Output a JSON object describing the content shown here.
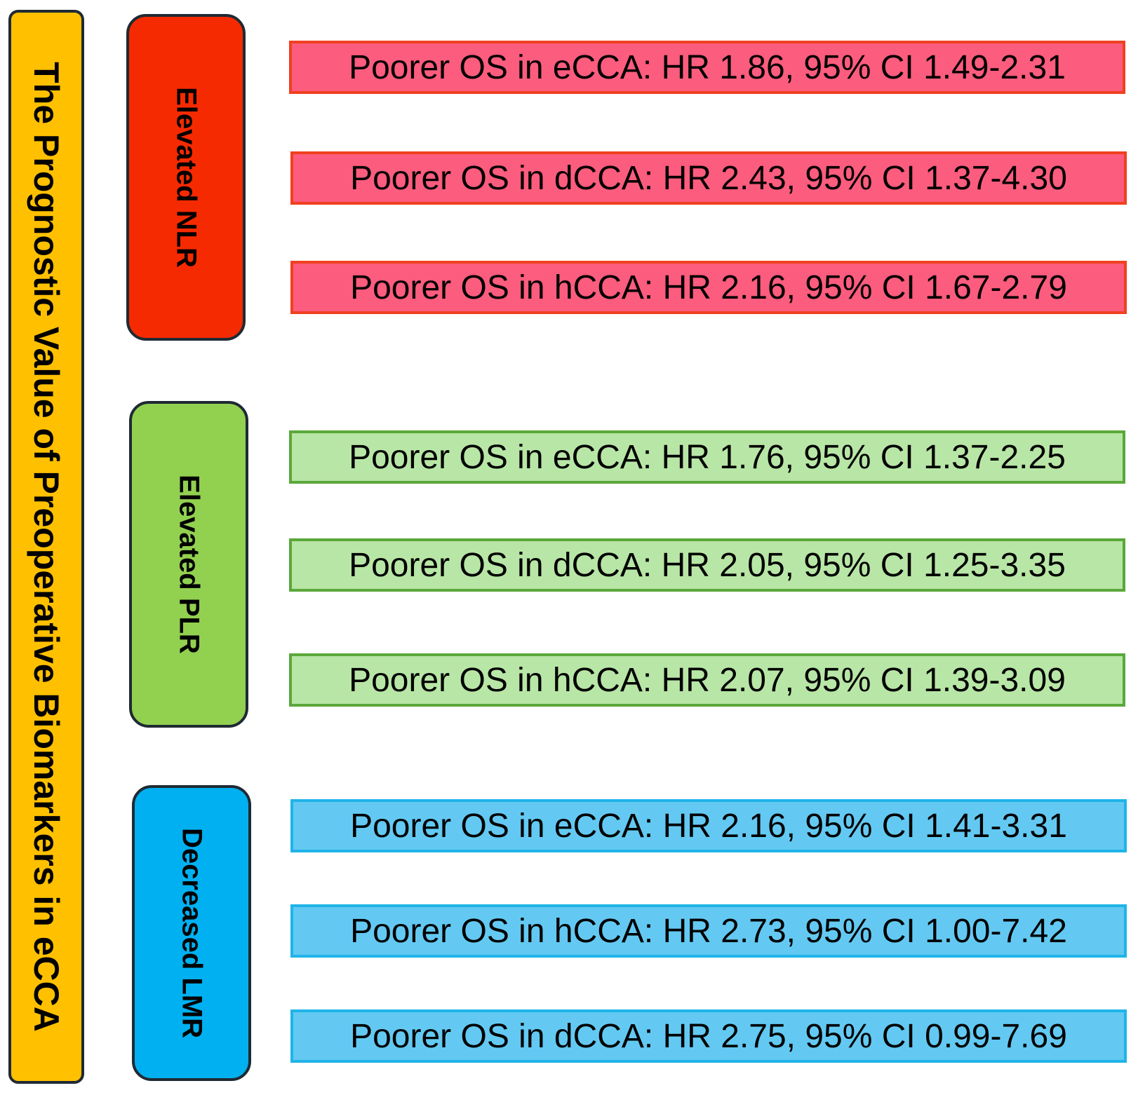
{
  "title": "The Prognostic Value of Preoperative Biomarkers in eCCA",
  "colors": {
    "title_fill": "#ffc000",
    "border_dark": "#1f2a33"
  },
  "groups": [
    {
      "label": "Elevated NLR",
      "fill": "#f52a00",
      "row_fill": "#fc5c7d",
      "row_border": "#f04020",
      "findings": [
        "Poorer OS in eCCA: HR 1.86, 95% CI 1.49-2.31",
        "Poorer OS in dCCA: HR 2.43, 95% CI 1.37-4.30",
        "Poorer OS in hCCA: HR 2.16, 95% CI 1.67-2.79"
      ]
    },
    {
      "label": "Elevated PLR",
      "fill": "#92d050",
      "row_fill": "#b8e6a6",
      "row_border": "#5aa83a",
      "findings": [
        "Poorer OS in eCCA: HR 1.76, 95% CI 1.37-2.25",
        "Poorer OS in dCCA: HR 2.05, 95% CI 1.25-3.35",
        "Poorer OS in hCCA: HR 2.07, 95% CI 1.39-3.09"
      ]
    },
    {
      "label": "Decreased LMR",
      "fill": "#00b0f0",
      "row_fill": "#63c9f2",
      "row_border": "#1fb4e8",
      "findings": [
        "Poorer OS in eCCA: HR 2.16, 95% CI 1.41-3.31",
        "Poorer OS in hCCA: HR 2.73, 95% CI 1.00-7.42",
        "Poorer OS in dCCA: HR 2.75, 95% CI 0.99-7.69"
      ]
    }
  ]
}
